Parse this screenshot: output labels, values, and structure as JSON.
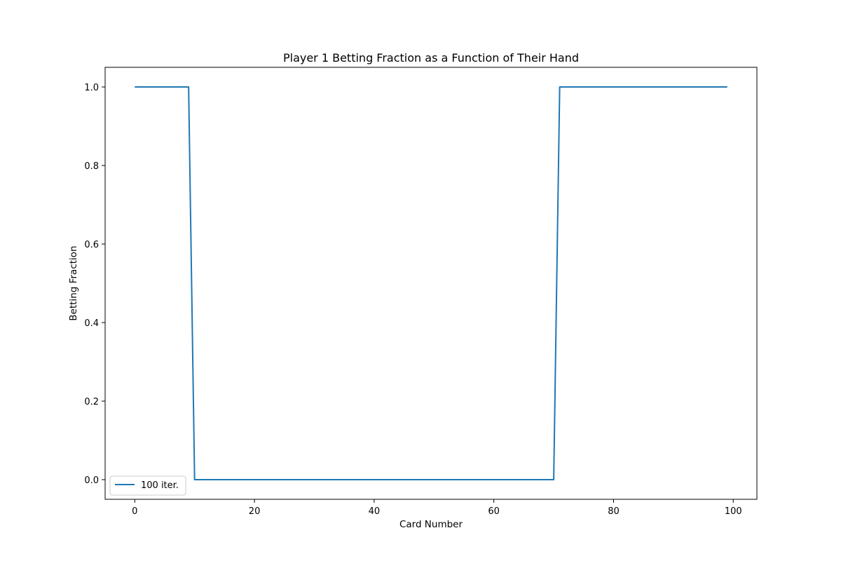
{
  "chart_data": {
    "type": "line",
    "title": "Player 1 Betting Fraction as a Function of Their Hand",
    "xlabel": "Card Number",
    "ylabel": "Betting Fraction",
    "xlim": [
      -4.95,
      103.95
    ],
    "ylim": [
      -0.05,
      1.05
    ],
    "xticks": [
      0,
      20,
      40,
      60,
      80,
      100
    ],
    "xtick_labels": [
      "0",
      "20",
      "40",
      "60",
      "80",
      "100"
    ],
    "yticks": [
      0.0,
      0.2,
      0.4,
      0.6,
      0.8,
      1.0
    ],
    "ytick_labels": [
      "0.0",
      "0.2",
      "0.4",
      "0.6",
      "0.8",
      "1.0"
    ],
    "grid": false,
    "legend_position": "lower-left",
    "series": [
      {
        "name": "100 iter.",
        "color": "#1f77b4",
        "x": [
          0,
          9,
          10,
          70,
          71,
          99
        ],
        "y": [
          1.0,
          1.0,
          0.0,
          0.0,
          1.0,
          1.0
        ]
      }
    ]
  }
}
